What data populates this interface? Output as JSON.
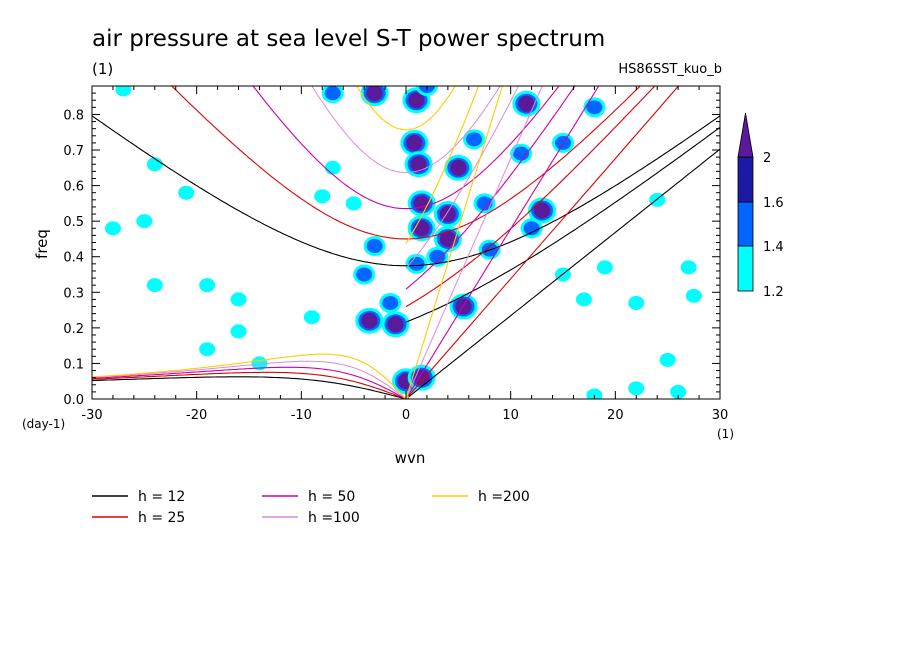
{
  "header": {
    "title": "air pressure at sea level S-T power spectrum",
    "units": "(1)",
    "run_name": "HS86SST_kuo_b"
  },
  "chart_data": {
    "type": "heatmap",
    "title": "air pressure at sea level S-T power spectrum",
    "xlabel": "wvn",
    "ylabel": "freq",
    "x_unit": "(1)",
    "y_unit": "(day-1)",
    "xlim": [
      -30,
      30
    ],
    "ylim": [
      0,
      0.88
    ],
    "x_ticks": [
      -30,
      -20,
      -10,
      0,
      10,
      20,
      30
    ],
    "x_tick_labels": [
      "-30",
      "-20",
      "-10",
      "0",
      "10",
      "20",
      "30"
    ],
    "y_ticks": [
      0,
      0.1,
      0.2,
      0.3,
      0.4,
      0.5,
      0.6,
      0.7,
      0.8
    ],
    "y_tick_labels": [
      "0.0",
      "0.1",
      "0.2",
      "0.3",
      "0.4",
      "0.5",
      "0.6",
      "0.7",
      "0.8"
    ],
    "colorbar": {
      "levels": [
        1.2,
        1.4,
        1.6,
        2
      ],
      "level_labels": [
        "1.2",
        "1.4",
        "1.6",
        "2"
      ],
      "colors": [
        "#00ffff",
        "#0066ff",
        "#1a1aa6",
        "#5a1a9a"
      ]
    },
    "blobs": [
      {
        "x": -3,
        "y": 0.86,
        "level": 3
      },
      {
        "x": 1,
        "y": 0.84,
        "level": 3
      },
      {
        "x": 0.8,
        "y": 0.72,
        "level": 3
      },
      {
        "x": 1.2,
        "y": 0.66,
        "level": 3
      },
      {
        "x": 1.5,
        "y": 0.55,
        "level": 3
      },
      {
        "x": 1.5,
        "y": 0.48,
        "level": 3
      },
      {
        "x": 1.0,
        "y": 0.38,
        "level": 2
      },
      {
        "x": -3,
        "y": 0.43,
        "level": 2
      },
      {
        "x": -4,
        "y": 0.35,
        "level": 2
      },
      {
        "x": -1.5,
        "y": 0.27,
        "level": 2
      },
      {
        "x": -3.5,
        "y": 0.22,
        "level": 3
      },
      {
        "x": -1,
        "y": 0.21,
        "level": 3
      },
      {
        "x": 0,
        "y": 0.05,
        "level": 3
      },
      {
        "x": 1.5,
        "y": 0.06,
        "level": 3
      },
      {
        "x": 5,
        "y": 0.65,
        "level": 3
      },
      {
        "x": 4,
        "y": 0.52,
        "level": 3
      },
      {
        "x": 4,
        "y": 0.45,
        "level": 3
      },
      {
        "x": 3,
        "y": 0.4,
        "level": 2
      },
      {
        "x": 5.5,
        "y": 0.26,
        "level": 3
      },
      {
        "x": 7.5,
        "y": 0.55,
        "level": 2
      },
      {
        "x": 8,
        "y": 0.42,
        "level": 2
      },
      {
        "x": 11,
        "y": 0.69,
        "level": 2
      },
      {
        "x": 13,
        "y": 0.53,
        "level": 3
      },
      {
        "x": 12,
        "y": 0.48,
        "level": 2
      },
      {
        "x": 15,
        "y": 0.72,
        "level": 2
      },
      {
        "x": 18,
        "y": 0.82,
        "level": 2
      },
      {
        "x": 11.5,
        "y": 0.83,
        "level": 3
      },
      {
        "x": 6.5,
        "y": 0.73,
        "level": 2
      },
      {
        "x": 2,
        "y": 0.88,
        "level": 2
      },
      {
        "x": -7,
        "y": 0.86,
        "level": 2
      },
      {
        "x": -27,
        "y": 0.87,
        "level": 1
      },
      {
        "x": -24,
        "y": 0.66,
        "level": 1
      },
      {
        "x": -25,
        "y": 0.5,
        "level": 1
      },
      {
        "x": -19,
        "y": 0.32,
        "level": 1
      },
      {
        "x": -24,
        "y": 0.32,
        "level": 1
      },
      {
        "x": -16,
        "y": 0.28,
        "level": 1
      },
      {
        "x": -16,
        "y": 0.19,
        "level": 1
      },
      {
        "x": -19,
        "y": 0.14,
        "level": 1
      },
      {
        "x": -14,
        "y": 0.1,
        "level": 1
      },
      {
        "x": -9,
        "y": 0.23,
        "level": 1
      },
      {
        "x": -28,
        "y": 0.48,
        "level": 1
      },
      {
        "x": -21,
        "y": 0.58,
        "level": 1
      },
      {
        "x": -7,
        "y": 0.65,
        "level": 1
      },
      {
        "x": -8,
        "y": 0.57,
        "level": 1
      },
      {
        "x": -5,
        "y": 0.55,
        "level": 1
      },
      {
        "x": 17,
        "y": 0.28,
        "level": 1
      },
      {
        "x": 19,
        "y": 0.37,
        "level": 1
      },
      {
        "x": 22,
        "y": 0.27,
        "level": 1
      },
      {
        "x": 27,
        "y": 0.37,
        "level": 1
      },
      {
        "x": 27.5,
        "y": 0.29,
        "level": 1
      },
      {
        "x": 18,
        "y": 0.01,
        "level": 1
      },
      {
        "x": 22,
        "y": 0.03,
        "level": 1
      },
      {
        "x": 26,
        "y": 0.02,
        "level": 1
      },
      {
        "x": 15,
        "y": 0.35,
        "level": 1
      },
      {
        "x": 25,
        "y": 0.11,
        "level": 1
      },
      {
        "x": 24,
        "y": 0.56,
        "level": 1
      }
    ],
    "dispersion_curves": [
      {
        "name": "h = 12",
        "h": 12,
        "color": "#000000",
        "width": 1.1
      },
      {
        "name": "h = 25",
        "h": 25,
        "color": "#dd0000",
        "width": 1.1
      },
      {
        "name": "h = 50",
        "h": 50,
        "color": "#cc00aa",
        "width": 1.1
      },
      {
        "name": "h =100",
        "h": 100,
        "color": "#dd88dd",
        "width": 1.0
      },
      {
        "name": "h =200",
        "h": 200,
        "color": "#ffcc00",
        "width": 1.1
      }
    ]
  }
}
